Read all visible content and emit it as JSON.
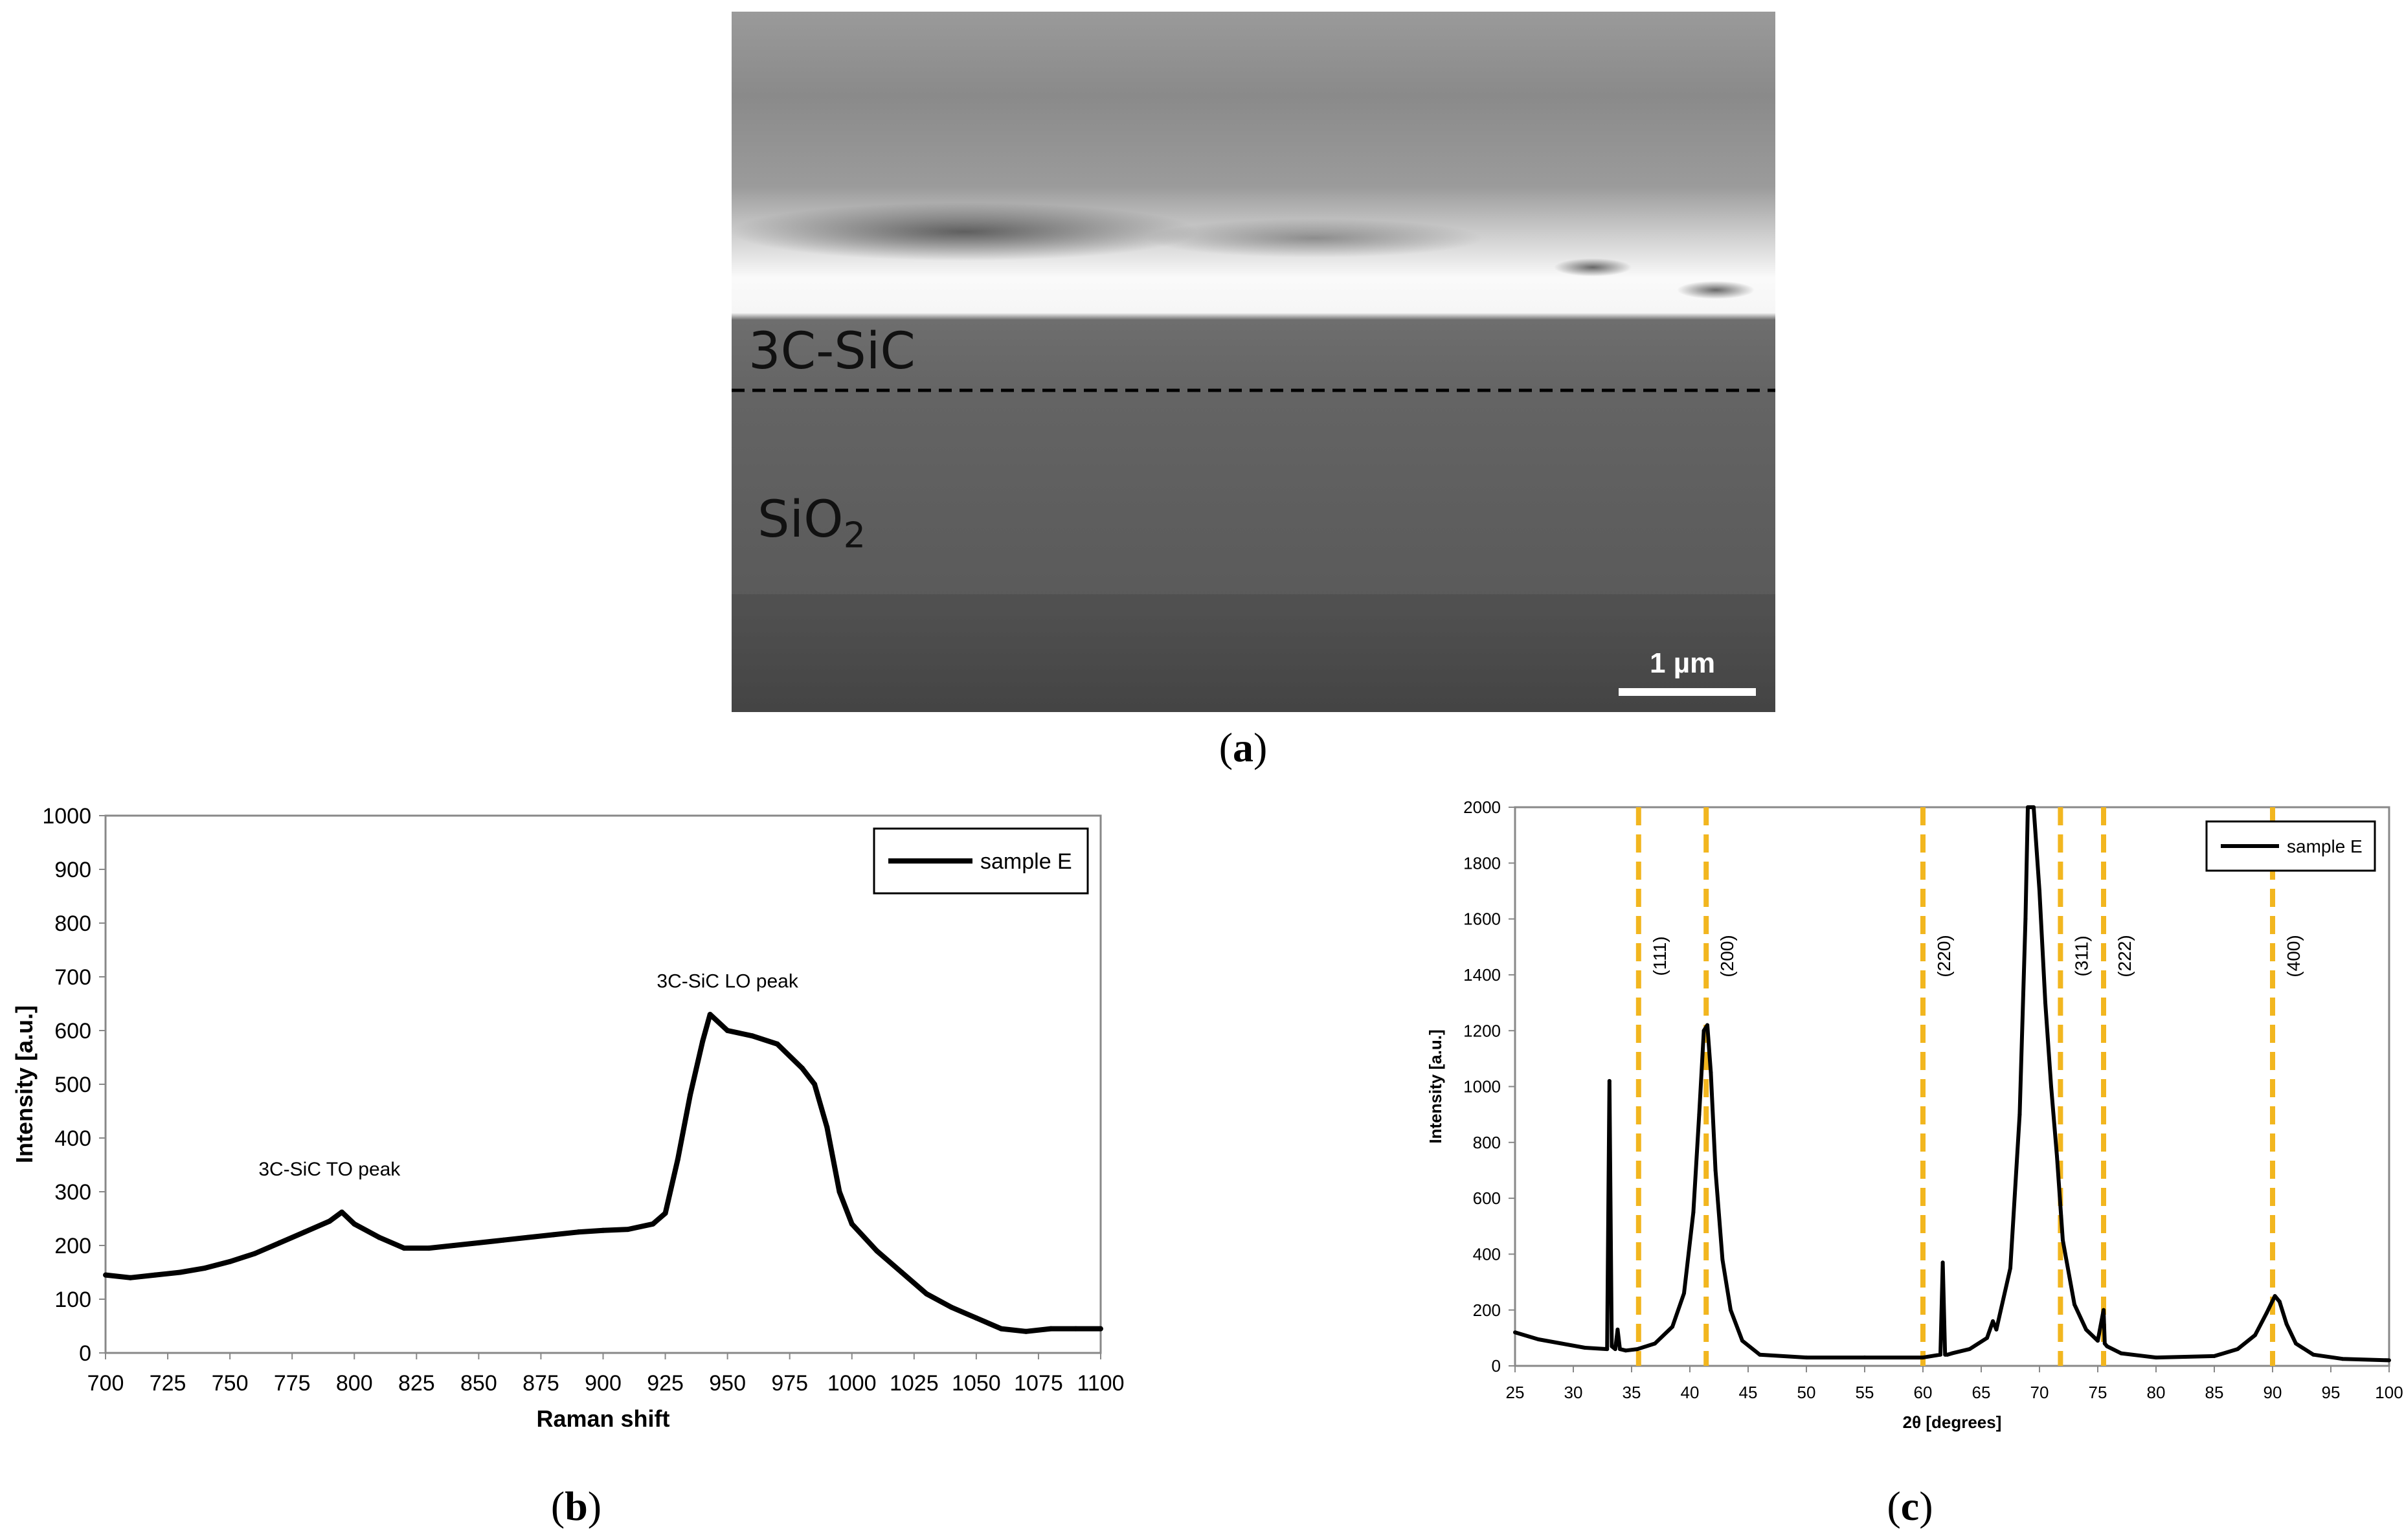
{
  "panel_a": {
    "label": "a",
    "layer_top_label": "3C-SiC",
    "layer_bottom_label_main": "SiO",
    "layer_bottom_label_sub": "2",
    "scale_bar_label": "1 µm"
  },
  "panel_b_label": "b",
  "panel_c_label": "c",
  "chart_data": [
    {
      "id": "raman",
      "type": "line",
      "xlabel": "Raman shift",
      "ylabel": "Intensity [a.u.]",
      "xlim": [
        700,
        1100
      ],
      "ylim": [
        0,
        1000
      ],
      "xticks": [
        700,
        725,
        750,
        775,
        800,
        825,
        850,
        875,
        900,
        925,
        950,
        975,
        1000,
        1025,
        1050,
        1075,
        1100
      ],
      "yticks": [
        0,
        100,
        200,
        300,
        400,
        500,
        600,
        700,
        800,
        900,
        1000
      ],
      "grid": false,
      "legend": "top-right",
      "series": [
        {
          "name": "sample E",
          "color": "#000000",
          "x": [
            700,
            710,
            720,
            730,
            740,
            750,
            760,
            770,
            780,
            790,
            795,
            800,
            810,
            820,
            830,
            840,
            850,
            860,
            870,
            880,
            890,
            900,
            910,
            920,
            925,
            930,
            935,
            940,
            943,
            950,
            960,
            970,
            980,
            985,
            990,
            995,
            1000,
            1010,
            1020,
            1030,
            1040,
            1050,
            1060,
            1070,
            1080,
            1090,
            1100
          ],
          "y": [
            145,
            140,
            145,
            150,
            158,
            170,
            185,
            205,
            225,
            245,
            262,
            240,
            215,
            195,
            195,
            200,
            205,
            210,
            215,
            220,
            225,
            228,
            230,
            240,
            260,
            360,
            480,
            580,
            630,
            600,
            590,
            575,
            530,
            500,
            420,
            300,
            240,
            190,
            150,
            110,
            85,
            65,
            45,
            40,
            45,
            45,
            45
          ]
        }
      ],
      "annotations": [
        {
          "text": "3C-SiC TO peak",
          "x": 790,
          "y": 330
        },
        {
          "text": "3C-SiC LO peak",
          "x": 950,
          "y": 680
        }
      ]
    },
    {
      "id": "xrd",
      "type": "line",
      "xlabel": "2θ [degrees]",
      "ylabel": "Intensity [a.u.]",
      "xlim": [
        25,
        100
      ],
      "ylim": [
        0,
        2000
      ],
      "xticks": [
        25,
        30,
        35,
        40,
        45,
        50,
        55,
        60,
        65,
        70,
        75,
        80,
        85,
        90,
        95,
        100
      ],
      "yticks": [
        0,
        200,
        400,
        600,
        800,
        1000,
        1200,
        1400,
        1600,
        1800,
        2000
      ],
      "grid": false,
      "legend": "top-right",
      "series": [
        {
          "name": "sample E",
          "color": "#000000",
          "x": [
            25,
            27,
            29,
            31,
            32.9,
            33.1,
            33.3,
            33.6,
            33.8,
            34.0,
            34.5,
            35.5,
            37,
            38.5,
            39.5,
            40.3,
            40.8,
            41.2,
            41.5,
            41.8,
            42.2,
            42.8,
            43.5,
            44.5,
            46,
            50,
            55,
            60,
            61.5,
            61.7,
            61.9,
            62.1,
            62.5,
            64,
            65.5,
            66.0,
            66.3,
            67.5,
            68.3,
            68.8,
            69.0,
            69.5,
            70.0,
            70.5,
            71,
            71.5,
            72,
            73,
            74,
            75,
            75.5,
            75.6,
            75.8,
            77,
            80,
            85,
            87,
            88.5,
            89.5,
            90.2,
            90.6,
            91.2,
            92,
            93.5,
            96,
            100
          ],
          "y": [
            120,
            95,
            80,
            65,
            60,
            1020,
            70,
            60,
            130,
            60,
            55,
            60,
            80,
            140,
            260,
            550,
            900,
            1200,
            1220,
            1050,
            700,
            380,
            200,
            90,
            40,
            30,
            30,
            30,
            40,
            370,
            40,
            40,
            45,
            60,
            100,
            160,
            130,
            350,
            900,
            1600,
            2000,
            2000,
            1700,
            1300,
            1000,
            750,
            450,
            220,
            130,
            90,
            200,
            80,
            70,
            45,
            30,
            35,
            60,
            110,
            190,
            250,
            230,
            150,
            80,
            40,
            25,
            20
          ]
        }
      ],
      "reference_lines": [
        {
          "x": 35.6,
          "label": "(111)"
        },
        {
          "x": 41.4,
          "label": "(200)"
        },
        {
          "x": 60.0,
          "label": "(220)"
        },
        {
          "x": 71.8,
          "label": "(311)"
        },
        {
          "x": 75.5,
          "label": "(222)"
        },
        {
          "x": 90.0,
          "label": "(400)"
        }
      ],
      "reference_color": "#f2b61f"
    }
  ]
}
